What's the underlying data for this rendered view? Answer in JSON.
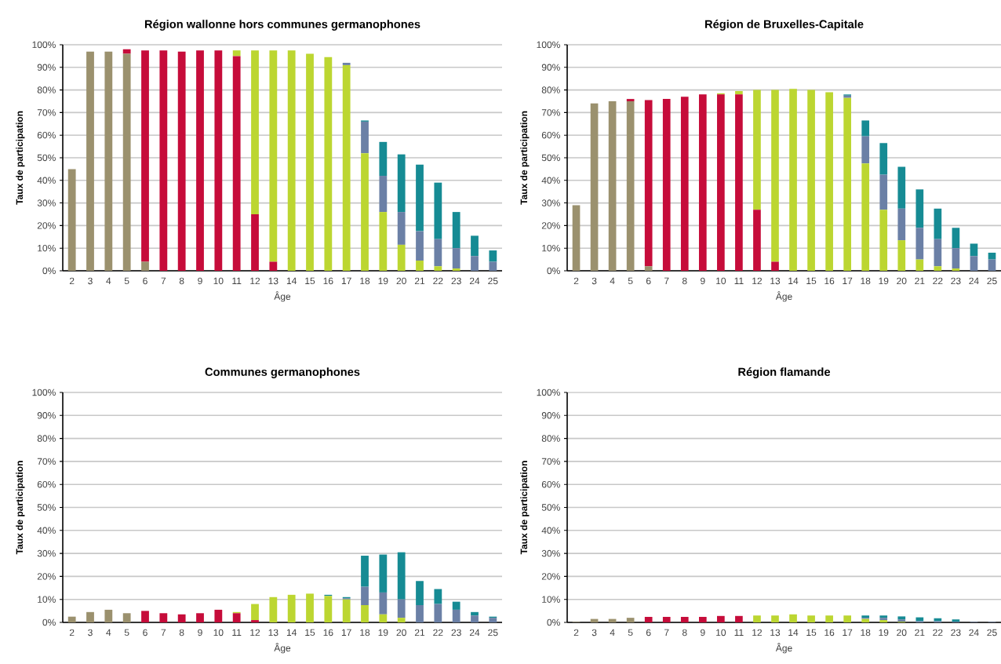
{
  "chart_data": [
    {
      "type": "bar",
      "stacked": true,
      "title": "Région wallonne hors communes germanophones",
      "xlabel": "Âge",
      "ylabel": "Taux de participation",
      "grid": "y",
      "categories": [
        "2",
        "3",
        "4",
        "5",
        "6",
        "7",
        "8",
        "9",
        "10",
        "11",
        "12",
        "13",
        "14",
        "15",
        "16",
        "17",
        "18",
        "19",
        "20",
        "21",
        "22",
        "23",
        "24",
        "25"
      ],
      "ylim": [
        0,
        100
      ],
      "yticks": [
        {
          "value": 0,
          "label": "0%"
        },
        {
          "value": 10,
          "label": "10%"
        },
        {
          "value": 20,
          "label": "20%"
        },
        {
          "value": 30,
          "label": "30%"
        },
        {
          "value": 40,
          "label": "40%"
        },
        {
          "value": 50,
          "label": "50%"
        },
        {
          "value": 60,
          "label": "60%"
        },
        {
          "value": 70,
          "label": "70%"
        },
        {
          "value": 80,
          "label": "80%"
        },
        {
          "value": 90,
          "label": "90%"
        },
        {
          "value": 100,
          "label": "100%"
        }
      ],
      "series": [
        {
          "color": "#9b916e",
          "values": [
            45,
            97,
            97,
            96,
            4,
            0,
            0,
            0,
            0,
            0,
            0,
            0,
            0,
            0,
            0,
            0,
            0,
            0,
            0,
            0,
            0,
            0,
            0,
            0
          ]
        },
        {
          "color": "#c60c3a",
          "values": [
            0,
            0,
            0,
            2,
            93.5,
            97.5,
            97,
            97.5,
            97.5,
            95,
            25,
            4,
            0,
            0,
            0,
            0,
            0,
            0,
            0,
            0,
            0,
            0,
            0,
            0
          ]
        },
        {
          "color": "#bcd631",
          "values": [
            0,
            0,
            0,
            0,
            0,
            0,
            0,
            0,
            0,
            2.5,
            72.5,
            93.5,
            97.5,
            96,
            94.5,
            91,
            52,
            26,
            11.5,
            4.5,
            2,
            1,
            0,
            0
          ]
        },
        {
          "color": "#6b80a6",
          "values": [
            0,
            0,
            0,
            0,
            0,
            0,
            0,
            0,
            0,
            0,
            0,
            0,
            0,
            0,
            0,
            1,
            14,
            16,
            14.5,
            13,
            12,
            9,
            6.5,
            4
          ]
        },
        {
          "color": "#168b94",
          "values": [
            0,
            0,
            0,
            0,
            0,
            0,
            0,
            0,
            0,
            0,
            0,
            0,
            0,
            0,
            0,
            0,
            0.5,
            15,
            25.5,
            29.5,
            25,
            16,
            9,
            5
          ]
        }
      ]
    },
    {
      "type": "bar",
      "stacked": true,
      "title": "Région de Bruxelles-Capitale",
      "xlabel": "Âge",
      "ylabel": "Taux de participation",
      "grid": "y",
      "categories": [
        "2",
        "3",
        "4",
        "5",
        "6",
        "7",
        "8",
        "9",
        "10",
        "11",
        "12",
        "13",
        "14",
        "15",
        "16",
        "17",
        "18",
        "19",
        "20",
        "21",
        "22",
        "23",
        "24",
        "25"
      ],
      "ylim": [
        0,
        100
      ],
      "yticks": [
        {
          "value": 0,
          "label": "0%"
        },
        {
          "value": 10,
          "label": "10%"
        },
        {
          "value": 20,
          "label": "20%"
        },
        {
          "value": 30,
          "label": "30%"
        },
        {
          "value": 40,
          "label": "40%"
        },
        {
          "value": 50,
          "label": "50%"
        },
        {
          "value": 60,
          "label": "60%"
        },
        {
          "value": 70,
          "label": "70%"
        },
        {
          "value": 80,
          "label": "80%"
        },
        {
          "value": 90,
          "label": "90%"
        },
        {
          "value": 100,
          "label": "100%"
        }
      ],
      "series": [
        {
          "color": "#9b916e",
          "values": [
            29,
            74,
            75,
            75,
            2,
            0,
            0,
            0,
            0,
            0,
            0,
            0,
            0,
            0,
            0,
            0,
            0,
            0,
            0,
            0,
            0,
            0,
            0,
            0
          ]
        },
        {
          "color": "#c60c3a",
          "values": [
            0,
            0,
            0,
            1,
            73.5,
            76,
            77,
            78,
            78,
            78,
            27,
            4,
            0,
            0,
            0,
            0,
            0,
            0,
            0,
            0,
            0,
            0,
            0,
            0
          ]
        },
        {
          "color": "#bcd631",
          "values": [
            0,
            0,
            0,
            0,
            0,
            0,
            0,
            0,
            0.5,
            1.5,
            53,
            76,
            80.5,
            80,
            79,
            76.5,
            47.5,
            27,
            13.5,
            5,
            2,
            1,
            0,
            0
          ]
        },
        {
          "color": "#6b80a6",
          "values": [
            0,
            0,
            0,
            0,
            0,
            0,
            0,
            0,
            0,
            0,
            0,
            0,
            0,
            0,
            0,
            1,
            12,
            15.5,
            14,
            14,
            12,
            9,
            6.5,
            5
          ]
        },
        {
          "color": "#168b94",
          "values": [
            0,
            0,
            0,
            0,
            0,
            0,
            0,
            0,
            0,
            0,
            0,
            0,
            0,
            0,
            0,
            0.5,
            7,
            14,
            18.5,
            17,
            13.5,
            9,
            5.5,
            3
          ]
        }
      ]
    },
    {
      "type": "bar",
      "stacked": true,
      "title": "Communes germanophones",
      "xlabel": "Âge",
      "ylabel": "Taux de participation",
      "grid": "y",
      "categories": [
        "2",
        "3",
        "4",
        "5",
        "6",
        "7",
        "8",
        "9",
        "10",
        "11",
        "12",
        "13",
        "14",
        "15",
        "16",
        "17",
        "18",
        "19",
        "20",
        "21",
        "22",
        "23",
        "24",
        "25"
      ],
      "ylim": [
        0,
        100
      ],
      "yticks": [
        {
          "value": 0,
          "label": "0%"
        },
        {
          "value": 10,
          "label": "10%"
        },
        {
          "value": 20,
          "label": "20%"
        },
        {
          "value": 30,
          "label": "30%"
        },
        {
          "value": 40,
          "label": "40%"
        },
        {
          "value": 50,
          "label": "50%"
        },
        {
          "value": 60,
          "label": "60%"
        },
        {
          "value": 70,
          "label": "70%"
        },
        {
          "value": 80,
          "label": "80%"
        },
        {
          "value": 90,
          "label": "90%"
        },
        {
          "value": 100,
          "label": "100%"
        }
      ],
      "series": [
        {
          "color": "#9b916e",
          "values": [
            2.5,
            4.5,
            5.5,
            4,
            0,
            0,
            0,
            0,
            0,
            0,
            0,
            0,
            0,
            0,
            0,
            0,
            0,
            0,
            0,
            0,
            0,
            0,
            0,
            0
          ]
        },
        {
          "color": "#c60c3a",
          "values": [
            0,
            0,
            0,
            0,
            5,
            4,
            3.5,
            4,
            5.5,
            4,
            1,
            0,
            0,
            0,
            0,
            0,
            0,
            0,
            0,
            0,
            0,
            0,
            0,
            0
          ]
        },
        {
          "color": "#bcd631",
          "values": [
            0,
            0,
            0,
            0,
            0,
            0,
            0,
            0,
            0,
            0.5,
            7,
            11,
            12,
            12.5,
            11.5,
            10,
            7.5,
            3.5,
            2,
            0,
            0,
            0,
            0,
            0
          ]
        },
        {
          "color": "#6b80a6",
          "values": [
            0,
            0,
            0,
            0,
            0,
            0,
            0,
            0,
            0,
            0,
            0,
            0,
            0,
            0,
            0,
            0.5,
            8,
            9.5,
            8,
            7.5,
            8,
            5.5,
            3,
            2
          ]
        },
        {
          "color": "#168b94",
          "values": [
            0,
            0,
            0,
            0,
            0,
            0,
            0,
            0,
            0,
            0,
            0,
            0,
            0,
            0,
            0.5,
            0.5,
            13.5,
            16.5,
            20.5,
            10.5,
            6.5,
            3.5,
            1.5,
            0.5
          ]
        }
      ]
    },
    {
      "type": "bar",
      "stacked": true,
      "title": "Région flamande",
      "xlabel": "Âge",
      "ylabel": "Taux de participation",
      "grid": "y",
      "categories": [
        "2",
        "3",
        "4",
        "5",
        "6",
        "7",
        "8",
        "9",
        "10",
        "11",
        "12",
        "13",
        "14",
        "15",
        "16",
        "17",
        "18",
        "19",
        "20",
        "21",
        "22",
        "23",
        "24",
        "25"
      ],
      "ylim": [
        0,
        100
      ],
      "yticks": [
        {
          "value": 0,
          "label": "0%"
        },
        {
          "value": 10,
          "label": "10%"
        },
        {
          "value": 20,
          "label": "20%"
        },
        {
          "value": 30,
          "label": "30%"
        },
        {
          "value": 40,
          "label": "40%"
        },
        {
          "value": 50,
          "label": "50%"
        },
        {
          "value": 60,
          "label": "60%"
        },
        {
          "value": 70,
          "label": "70%"
        },
        {
          "value": 80,
          "label": "80%"
        },
        {
          "value": 90,
          "label": "90%"
        },
        {
          "value": 100,
          "label": "100%"
        }
      ],
      "series": [
        {
          "color": "#9b916e",
          "values": [
            0.2,
            1.5,
            1.5,
            2,
            0,
            0,
            0,
            0,
            0,
            0,
            0,
            0,
            0,
            0,
            0,
            0,
            0,
            0,
            0,
            0,
            0,
            0,
            0,
            0
          ]
        },
        {
          "color": "#c60c3a",
          "values": [
            0,
            0,
            0,
            0,
            2.4,
            2.4,
            2.4,
            2.4,
            2.8,
            2.8,
            0,
            0,
            0,
            0,
            0,
            0,
            0,
            0,
            0,
            0,
            0,
            0,
            0,
            0
          ]
        },
        {
          "color": "#bcd631",
          "values": [
            0,
            0,
            0,
            0,
            0,
            0,
            0,
            0,
            0,
            0,
            3,
            3,
            3.5,
            3,
            3,
            3,
            1.5,
            1,
            0.3,
            0,
            0,
            0,
            0,
            0
          ]
        },
        {
          "color": "#6b80a6",
          "values": [
            0,
            0,
            0,
            0,
            0,
            0,
            0,
            0,
            0,
            0,
            0,
            0,
            0,
            0,
            0,
            null,
            0.5,
            1,
            1,
            0.5,
            0.5,
            0.3,
            0.2,
            0.2
          ]
        },
        {
          "color": "#168b94",
          "values": [
            0,
            0,
            0,
            0,
            0,
            0,
            0,
            0,
            0,
            0,
            0,
            0,
            0,
            0,
            0,
            0,
            1,
            1,
            1.3,
            1.7,
            1.3,
            1,
            0,
            0
          ]
        }
      ]
    }
  ]
}
